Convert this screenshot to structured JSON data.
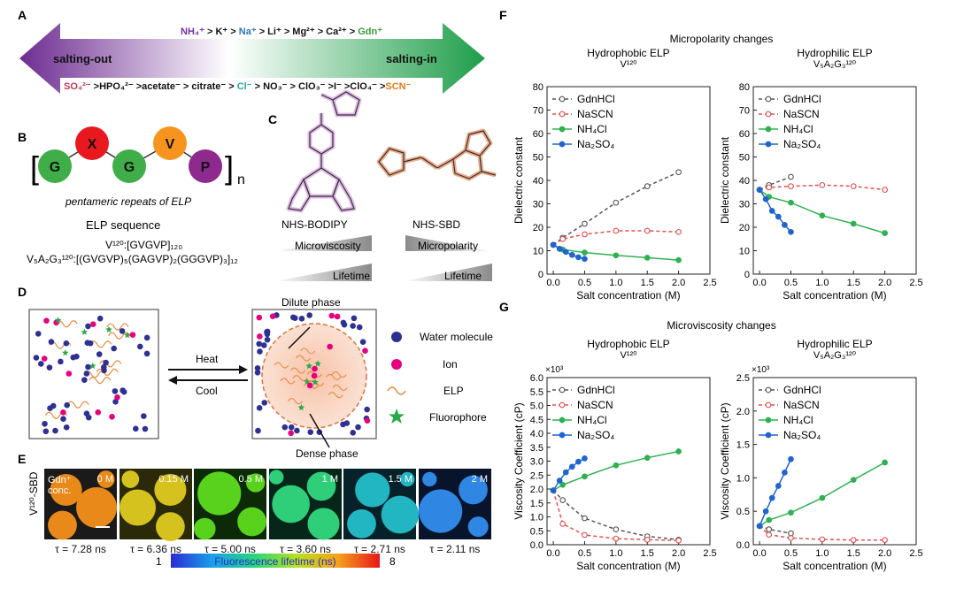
{
  "panel_labels": {
    "a": "A",
    "b": "B",
    "c": "C",
    "d": "D",
    "e": "E",
    "f": "F",
    "g": "G"
  },
  "hofmeister": {
    "cations": [
      {
        "text": "NH₄⁺",
        "color": "#7030a0"
      },
      {
        "text": " > K⁺ > ",
        "color": "#111111"
      },
      {
        "text": "Na⁺",
        "color": "#2e75b6"
      },
      {
        "text": " > Li⁺ >  Mg²⁺ > Ca²⁺ > ",
        "color": "#111111"
      },
      {
        "text": "Gdn⁺",
        "color": "#3a9a3a"
      }
    ],
    "anions": [
      {
        "text": "SO₄²⁻",
        "color": "#c0395b"
      },
      {
        "text": " >HPO₄²⁻ >acetate⁻ > citrate⁻ > ",
        "color": "#111111"
      },
      {
        "text": "Cl⁻",
        "color": "#2aa3a3"
      },
      {
        "text": " > NO₃⁻ > ClO₃⁻ >I⁻ >ClO₄⁻ >",
        "color": "#111111"
      },
      {
        "text": "SCN⁻",
        "color": "#e07b1a"
      }
    ],
    "left_label": "salting-out",
    "right_label": "salting-in"
  },
  "elp_repeat": {
    "beads": [
      {
        "letter": "G",
        "color": "#3fae49"
      },
      {
        "letter": "X",
        "color": "#e8191e"
      },
      {
        "letter": "G",
        "color": "#3fae49"
      },
      {
        "letter": "V",
        "color": "#f7941d"
      },
      {
        "letter": "P",
        "color": "#8e2a8e"
      }
    ],
    "bracket_left": "[",
    "bracket_right": "]",
    "subscript_n": "n",
    "caption": "pentameric repeats of ELP",
    "sequence_title": "ELP sequence",
    "seq_v120": "V¹²⁰:[GVGVP]₁₂₀",
    "seq_v5a2g3": "V₅A₂G₃¹²⁰:[(GVGVP)₅(GAGVP)₂(GGGVP)₃]₁₂"
  },
  "probes": {
    "bodipy_name": "NHS-BODIPY",
    "sbd_name": "NHS-SBD",
    "bodipy_sensitivity": "Microviscosity",
    "sbd_sensitivity": "Micropolarity",
    "lifetime_label": "Lifetime",
    "bodipy_color": "#c77dd6",
    "sbd_color": "#e2733a"
  },
  "phase_diagram": {
    "heat_label": "Heat",
    "cool_label": "Cool",
    "dilute_label": "Dilute phase",
    "dense_label": "Dense phase",
    "legend": [
      {
        "label": "Water molecule",
        "color": "#2e3192"
      },
      {
        "label": "Ion",
        "color": "#e6007e"
      },
      {
        "label": "ELP",
        "color": "#e8893b"
      },
      {
        "label": "Fluorophore",
        "color": "#2aa84a"
      }
    ]
  },
  "flim": {
    "row_label": "V¹²⁰-SBD",
    "corner_label_1": "Gdn⁺",
    "corner_label_2": "conc.",
    "tiles": [
      {
        "conc": "0 M",
        "tau": "τ = 7.28 ns",
        "bg": "#1a1a1a",
        "drop": "#e8891a"
      },
      {
        "conc": "0.15 M",
        "tau": "τ = 6.36 ns",
        "bg": "#2b2a08",
        "drop": "#d6c21e"
      },
      {
        "conc": "0.5 M",
        "tau": "τ = 5.00 ns",
        "bg": "#0d2a08",
        "drop": "#58d21c"
      },
      {
        "conc": "1 M",
        "tau": "τ = 3.60 ns",
        "bg": "#06261a",
        "drop": "#2fcf7a"
      },
      {
        "conc": "1.5 M",
        "tau": "τ = 2.71 ns",
        "bg": "#062129",
        "drop": "#22b5c2"
      },
      {
        "conc": "2 M",
        "tau": "τ = 2.11 ns",
        "bg": "#07142b",
        "drop": "#2f86e3"
      }
    ],
    "colorbar_min": "1",
    "colorbar_max": "8",
    "colorbar_label": "Fluorescence lifetime (ns)"
  },
  "figure_titles": {
    "f_title": "Micropolarity changes",
    "g_title": "Microviscosity changes"
  },
  "chart_data": [
    {
      "panel": "F",
      "type": "line",
      "title": "Hydrophobic ELP",
      "subtitle": "V¹²⁰",
      "xlabel": "Salt concentration (M)",
      "ylabel": "Dielectric constant",
      "xlim": [
        -0.1,
        2.5
      ],
      "ylim": [
        0,
        80
      ],
      "xticks": [
        "0.0",
        "0.5",
        "1.0",
        "1.5",
        "2.0",
        "2.5"
      ],
      "yticks": [
        "0",
        "10",
        "20",
        "30",
        "40",
        "50",
        "60",
        "70",
        "80"
      ],
      "multiplier": "",
      "legend_position": "top-left",
      "series": [
        {
          "name": "GdnHCl",
          "color": "#555555",
          "style": "dash-open",
          "x": [
            0,
            0.15,
            0.5,
            1.0,
            1.5,
            2.0
          ],
          "y": [
            12.5,
            15.5,
            21.5,
            30.5,
            37.5,
            43.5
          ]
        },
        {
          "name": "NaSCN",
          "color": "#e0504f",
          "style": "dash-open",
          "x": [
            0,
            0.15,
            0.5,
            1.0,
            1.5,
            2.0
          ],
          "y": [
            12.5,
            15,
            17,
            18.5,
            18.5,
            18
          ]
        },
        {
          "name": "NH₄Cl",
          "color": "#2fb150",
          "style": "solid",
          "x": [
            0,
            0.15,
            0.5,
            1.0,
            1.5,
            2.0
          ],
          "y": [
            12.5,
            10.5,
            9.2,
            8,
            7,
            6
          ]
        },
        {
          "name": "Na₂SO₄",
          "color": "#1f64d1",
          "style": "solid",
          "x": [
            0,
            0.1,
            0.2,
            0.3,
            0.4,
            0.5
          ],
          "y": [
            12.5,
            10.8,
            9.5,
            8.2,
            7.2,
            6.5
          ]
        }
      ]
    },
    {
      "panel": "F",
      "type": "line",
      "title": "Hydrophilic ELP",
      "subtitle": "V₅A₂G₃¹²⁰",
      "xlabel": "Salt concentration (M)",
      "ylabel": "Dielectric constant",
      "xlim": [
        -0.1,
        2.5
      ],
      "ylim": [
        0,
        80
      ],
      "xticks": [
        "0.0",
        "0.5",
        "1.0",
        "1.5",
        "2.0",
        "2.5"
      ],
      "yticks": [
        "0",
        "10",
        "20",
        "30",
        "40",
        "50",
        "60",
        "70",
        "80"
      ],
      "multiplier": "",
      "legend_position": "top-left",
      "series": [
        {
          "name": "GdnHCl",
          "color": "#555555",
          "style": "dash-open",
          "x": [
            0,
            0.15,
            0.5
          ],
          "y": [
            36,
            38,
            41.5
          ]
        },
        {
          "name": "NaSCN",
          "color": "#e0504f",
          "style": "dash-open",
          "x": [
            0,
            0.15,
            0.5,
            1.0,
            1.5,
            2.0
          ],
          "y": [
            36,
            37,
            37.5,
            38,
            37.5,
            36
          ]
        },
        {
          "name": "NH₄Cl",
          "color": "#2fb150",
          "style": "solid",
          "x": [
            0,
            0.15,
            0.5,
            1.0,
            1.5,
            2.0
          ],
          "y": [
            36,
            33,
            30.5,
            25,
            21.5,
            17.5
          ]
        },
        {
          "name": "Na₂SO₄",
          "color": "#1f64d1",
          "style": "solid",
          "x": [
            0,
            0.1,
            0.2,
            0.3,
            0.4,
            0.5
          ],
          "y": [
            36,
            32,
            27,
            24.5,
            21,
            18
          ]
        }
      ]
    },
    {
      "panel": "G",
      "type": "line",
      "title": "Hydrophobic ELP",
      "subtitle": "V¹²⁰",
      "xlabel": "Salt concentration (M)",
      "ylabel": "Viscosity Coefficient (cP)",
      "xlim": [
        -0.1,
        2.5
      ],
      "ylim": [
        0,
        6.0
      ],
      "xticks": [
        "0.0",
        "0.5",
        "1.0",
        "1.5",
        "2.0",
        "2.5"
      ],
      "yticks": [
        "0.0",
        "0.5",
        "1.0",
        "1.5",
        "2.0",
        "2.5",
        "3.0",
        "3.5",
        "4.0",
        "4.5",
        "5.0",
        "5.5",
        "6.0"
      ],
      "multiplier": "×10³",
      "legend_position": "top-left",
      "series": [
        {
          "name": "GdnHCl",
          "color": "#555555",
          "style": "dash-open",
          "x": [
            0,
            0.15,
            0.5,
            1.0,
            1.5,
            2.0
          ],
          "y": [
            1.95,
            1.6,
            0.95,
            0.55,
            0.3,
            0.18
          ]
        },
        {
          "name": "NaSCN",
          "color": "#e0504f",
          "style": "dash-open",
          "x": [
            0,
            0.15,
            0.5,
            1.0,
            1.5,
            2.0
          ],
          "y": [
            1.95,
            0.75,
            0.35,
            0.22,
            0.18,
            0.15
          ]
        },
        {
          "name": "NH₄Cl",
          "color": "#2fb150",
          "style": "solid",
          "x": [
            0,
            0.15,
            0.5,
            1.0,
            1.5,
            2.0
          ],
          "y": [
            1.95,
            2.15,
            2.45,
            2.85,
            3.12,
            3.35
          ]
        },
        {
          "name": "Na₂SO₄",
          "color": "#1f64d1",
          "style": "solid",
          "x": [
            0,
            0.1,
            0.2,
            0.3,
            0.4,
            0.5
          ],
          "y": [
            1.95,
            2.3,
            2.6,
            2.8,
            2.98,
            3.1
          ]
        }
      ]
    },
    {
      "panel": "G",
      "type": "line",
      "title": "Hydrophilic ELP",
      "subtitle": "V₅A₂G₃¹²⁰",
      "xlabel": "Salt concentration (M)",
      "ylabel": "Viscosity Coefficient (cP)",
      "xlim": [
        -0.1,
        2.5
      ],
      "ylim": [
        0,
        2.5
      ],
      "xticks": [
        "0.0",
        "0.5",
        "1.0",
        "1.5",
        "2.0",
        "2.5"
      ],
      "yticks": [
        "0.0",
        "0.5",
        "1.0",
        "1.5",
        "2.0",
        "2.5"
      ],
      "multiplier": "×10³",
      "legend_position": "top-left",
      "series": [
        {
          "name": "GdnHCl",
          "color": "#555555",
          "style": "dash-open",
          "x": [
            0,
            0.15,
            0.5
          ],
          "y": [
            0.28,
            0.23,
            0.17
          ]
        },
        {
          "name": "NaSCN",
          "color": "#e0504f",
          "style": "dash-open",
          "x": [
            0,
            0.15,
            0.5,
            1.0,
            1.5,
            2.0
          ],
          "y": [
            0.28,
            0.15,
            0.1,
            0.08,
            0.07,
            0.07
          ]
        },
        {
          "name": "NH₄Cl",
          "color": "#2fb150",
          "style": "solid",
          "x": [
            0,
            0.15,
            0.5,
            1.0,
            1.5,
            2.0
          ],
          "y": [
            0.28,
            0.37,
            0.48,
            0.7,
            0.97,
            1.23
          ]
        },
        {
          "name": "Na₂SO₄",
          "color": "#1f64d1",
          "style": "solid",
          "x": [
            0,
            0.1,
            0.2,
            0.3,
            0.4,
            0.5
          ],
          "y": [
            0.28,
            0.5,
            0.7,
            0.88,
            1.08,
            1.28
          ]
        }
      ]
    }
  ]
}
